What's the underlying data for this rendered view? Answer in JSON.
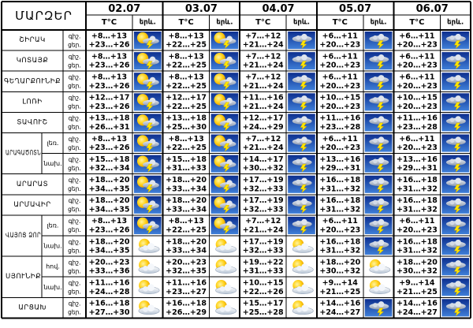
{
  "table": {
    "region_header": "ՄԱՐԶԵՐ",
    "temp_header": "T°C",
    "sky_header": "երև.",
    "night_label": "գիշ.",
    "day_label": "ցեր.",
    "dates": [
      "02.07",
      "03.07",
      "04.07",
      "05.07",
      "06.07"
    ],
    "rows": [
      {
        "region": "ՇԻՐԱԿ",
        "sub": "",
        "days": [
          {
            "night": "+8…+13",
            "day": "+23…+26",
            "icon": "sun-cloud-lightning-icon"
          },
          {
            "night": "+8…+13",
            "day": "+22…+25",
            "icon": "sun-cloud-lightning-icon"
          },
          {
            "night": "+7…+12",
            "day": "+21…+24",
            "icon": "cloud-lightning-icon"
          },
          {
            "night": "+6…+11",
            "day": "+20…+23",
            "icon": "cloud-lightning-icon"
          },
          {
            "night": "+6…+11",
            "day": "+20…+23",
            "icon": "cloud-lightning-icon"
          }
        ]
      },
      {
        "region": "ԿՈՏԱՅՔ",
        "sub": "",
        "days": [
          {
            "night": "+8…+13",
            "day": "+23…+26",
            "icon": "sun-cloud-lightning-icon"
          },
          {
            "night": "+8…+13",
            "day": "+22…+25",
            "icon": "sun-cloud-lightning-icon"
          },
          {
            "night": "+7…+12",
            "day": "+21…+24",
            "icon": "cloud-lightning-icon"
          },
          {
            "night": "+6…+11",
            "day": "+20…+23",
            "icon": "cloud-lightning-icon"
          },
          {
            "night": "+6…+11",
            "day": "+20…+23",
            "icon": "cloud-lightning-icon"
          }
        ]
      },
      {
        "region": "ԳԵՂԱՐՔՈՒՆԻՔ",
        "sub": "",
        "days": [
          {
            "night": "+8…+13",
            "day": "+23…+26",
            "icon": "sun-cloud-lightning-icon"
          },
          {
            "night": "+8…+13",
            "day": "+22…+25",
            "icon": "sun-cloud-lightning-icon"
          },
          {
            "night": "+7…+12",
            "day": "+21…+24",
            "icon": "cloud-lightning-icon"
          },
          {
            "night": "+6…+11",
            "day": "+20…+23",
            "icon": "cloud-lightning-icon"
          },
          {
            "night": "+6…+11",
            "day": "+20…+23",
            "icon": "cloud-lightning-icon"
          }
        ]
      },
      {
        "region": "ԼՈՌԻ",
        "sub": "",
        "days": [
          {
            "night": "+12…+17",
            "day": "+23…+26",
            "icon": "sun-cloud-lightning-icon"
          },
          {
            "night": "+12…+17",
            "day": "+22…+25",
            "icon": "sun-cloud-lightning-icon"
          },
          {
            "night": "+11…+16",
            "day": "+21…+24",
            "icon": "cloud-lightning-icon"
          },
          {
            "night": "+10…+15",
            "day": "+20…+23",
            "icon": "cloud-lightning-icon"
          },
          {
            "night": "+10…+15",
            "day": "+20…+23",
            "icon": "cloud-lightning-icon"
          }
        ]
      },
      {
        "region": "ՏԱՎՈՒՇ",
        "sub": "",
        "days": [
          {
            "night": "+13…+18",
            "day": "+26…+31",
            "icon": "sun-cloud-lightning-icon"
          },
          {
            "night": "+13…+18",
            "day": "+25…+30",
            "icon": "sun-cloud-lightning-icon"
          },
          {
            "night": "+12…+17",
            "day": "+24…+29",
            "icon": "cloud-lightning-icon"
          },
          {
            "night": "+11…+16",
            "day": "+23…+28",
            "icon": "cloud-lightning-icon"
          },
          {
            "night": "+11…+16",
            "day": "+23…+28",
            "icon": "cloud-lightning-icon"
          }
        ]
      },
      {
        "region": "ԱՐԱԳԱԾՈՏՆ",
        "sub": "լեռ.",
        "days": [
          {
            "night": "+8…+13",
            "day": "+23…+26",
            "icon": "sun-cloud-lightning-icon"
          },
          {
            "night": "+8…+13",
            "day": "+22…+25",
            "icon": "sun-cloud-lightning-icon"
          },
          {
            "night": "+7…+12",
            "day": "+21…+24",
            "icon": "cloud-lightning-icon"
          },
          {
            "night": "+6…+11",
            "day": "+20…+23",
            "icon": "cloud-lightning-icon"
          },
          {
            "night": "+6…+11",
            "day": "+20…+23",
            "icon": "cloud-lightning-icon"
          }
        ]
      },
      {
        "region": "",
        "sub": "նախ.",
        "days": [
          {
            "night": "+15…+18",
            "day": "+32…+34",
            "icon": "sun-cloud-lightning-icon"
          },
          {
            "night": "+15…+18",
            "day": "+31…+33",
            "icon": "sun-cloud-lightning-icon"
          },
          {
            "night": "+14…+17",
            "day": "+30…+32",
            "icon": "cloud-lightning-icon"
          },
          {
            "night": "+13…+16",
            "day": "+29…+31",
            "icon": "cloud-lightning-icon"
          },
          {
            "night": "+13…+16",
            "day": "+29…+31",
            "icon": "cloud-lightning-icon"
          }
        ]
      },
      {
        "region": "ԱՐԱՐԱՏ",
        "sub": "",
        "days": [
          {
            "night": "+18…+20",
            "day": "+34…+35",
            "icon": "sun-cloud-lightning-icon"
          },
          {
            "night": "+18…+20",
            "day": "+33…+34",
            "icon": "sun-cloud-lightning-icon"
          },
          {
            "night": "+17…+19",
            "day": "+32…+33",
            "icon": "cloud-lightning-icon"
          },
          {
            "night": "+16…+18",
            "day": "+31…+32",
            "icon": "cloud-lightning-icon"
          },
          {
            "night": "+16…+18",
            "day": "+31…+32",
            "icon": "cloud-lightning-icon"
          }
        ]
      },
      {
        "region": "ԱՐՄԱՎԻՐ",
        "sub": "",
        "days": [
          {
            "night": "+18…+20",
            "day": "+34…+35",
            "icon": "sun-cloud-lightning-icon"
          },
          {
            "night": "+18…+20",
            "day": "+33…+34",
            "icon": "sun-cloud-lightning-icon"
          },
          {
            "night": "+17…+19",
            "day": "+32…+33",
            "icon": "cloud-lightning-icon"
          },
          {
            "night": "+16…+18",
            "day": "+31…+32",
            "icon": "cloud-lightning-icon"
          },
          {
            "night": "+16…+18",
            "day": "+31…+32",
            "icon": "cloud-lightning-icon"
          }
        ]
      },
      {
        "region": "ՎԱՅՈՑ ՁՈՐ",
        "sub": "լեռ.",
        "days": [
          {
            "night": "+8…+13",
            "day": "+23…+26",
            "icon": "sun-cloud-lightning-icon"
          },
          {
            "night": "+8…+13",
            "day": "+22…+25",
            "icon": "sun-cloud-lightning-icon"
          },
          {
            "night": "+7…+12",
            "day": "+21…+24",
            "icon": "cloud-lightning-icon"
          },
          {
            "night": "+6…+11",
            "day": "+20…+23",
            "icon": "cloud-lightning-icon"
          },
          {
            "night": "+6…+11",
            "day": "+20…+23",
            "icon": "cloud-lightning-icon"
          }
        ]
      },
      {
        "region": "",
        "sub": "նախ.",
        "days": [
          {
            "night": "+18…+20",
            "day": "+34…+35",
            "icon": "sun-cloud-icon"
          },
          {
            "night": "+18…+20",
            "day": "+33…+34",
            "icon": "sun-cloud-icon"
          },
          {
            "night": "+17…+19",
            "day": "+32…+33",
            "icon": "sun-cloud-icon"
          },
          {
            "night": "+16…+18",
            "day": "+31…+32",
            "icon": "cloud-lightning-icon"
          },
          {
            "night": "+16…+18",
            "day": "+31…+32",
            "icon": "cloud-lightning-icon"
          }
        ]
      },
      {
        "region": "ՍՅՈՒՆԻՔ",
        "sub": "հով.",
        "days": [
          {
            "night": "+20…+23",
            "day": "+33…+36",
            "icon": "sun-cloud-icon"
          },
          {
            "night": "+20…+23",
            "day": "+32…+35",
            "icon": "sun-cloud-icon"
          },
          {
            "night": "+19…+22",
            "day": "+31…+33",
            "icon": "sun-cloud-icon"
          },
          {
            "night": "+18…+20",
            "day": "+30…+32",
            "icon": "sun-cloud-icon"
          },
          {
            "night": "+18…+20",
            "day": "+30…+32",
            "icon": "cloud-lightning-icon"
          }
        ]
      },
      {
        "region": "",
        "sub": "նախ.",
        "days": [
          {
            "night": "+11…+16",
            "day": "+24…+28",
            "icon": "sun-cloud-icon"
          },
          {
            "night": "+11…+16",
            "day": "+23…+27",
            "icon": "sun-cloud-icon"
          },
          {
            "night": "+10…+15",
            "day": "+22…+26",
            "icon": "sun-cloud-icon"
          },
          {
            "night": "+9…+14",
            "day": "+21…+25",
            "icon": "sun-cloud-icon"
          },
          {
            "night": "+9…+14",
            "day": "+21…+25",
            "icon": "cloud-lightning-icon"
          }
        ]
      },
      {
        "region": "ԱՐՑԱԽ",
        "sub": "",
        "days": [
          {
            "night": "+16…+18",
            "day": "+27…+30",
            "icon": "sun-cloud-icon"
          },
          {
            "night": "+16…+18",
            "day": "+26…+29",
            "icon": "sun-cloud-icon"
          },
          {
            "night": "+15…+17",
            "day": "+25…+28",
            "icon": "sun-cloud-icon"
          },
          {
            "night": "+14…+16",
            "day": "+24…+27",
            "icon": "cloud-lightning-icon"
          },
          {
            "night": "+14…+16",
            "day": "+24…+27",
            "icon": "cloud-lightning-icon"
          }
        ]
      }
    ]
  }
}
